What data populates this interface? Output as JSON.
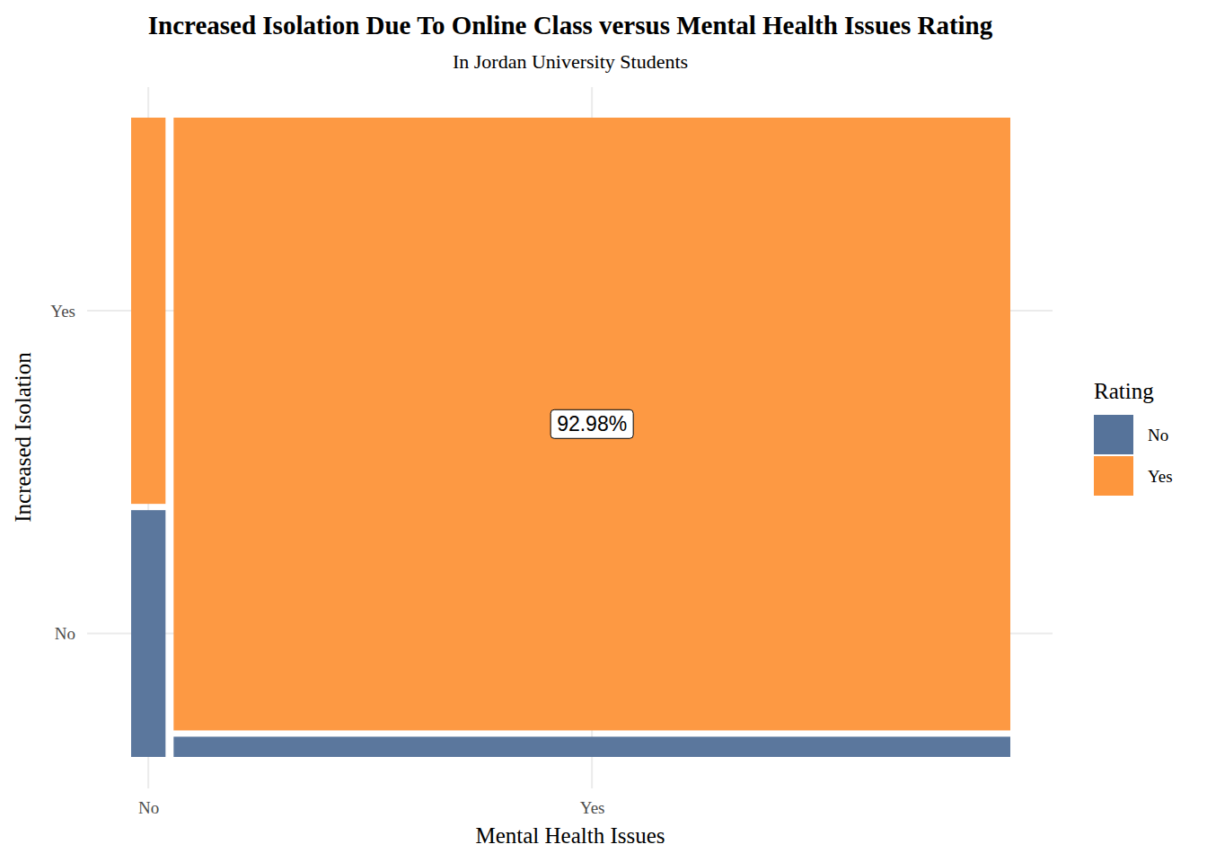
{
  "chart_data": {
    "type": "mosaic",
    "title": "Increased Isolation Due To Online Class versus Mental Health Issues Rating",
    "subtitle": "In Jordan University Students",
    "x_label": "Mental Health Issues",
    "y_label": "Increased Isolation",
    "legend_title": "Rating",
    "categories": [
      "No",
      "Yes"
    ],
    "series": [
      {
        "name": "No",
        "color": "#56739a",
        "values": [
          1.54,
          3.07
        ],
        "value_labels": [
          null,
          null
        ]
      },
      {
        "name": "Yes",
        "color": "#fd963d",
        "values": [
          2.41,
          92.98
        ],
        "value_labels": [
          null,
          "92.98%"
        ]
      }
    ],
    "grid": true,
    "legend": "right"
  }
}
